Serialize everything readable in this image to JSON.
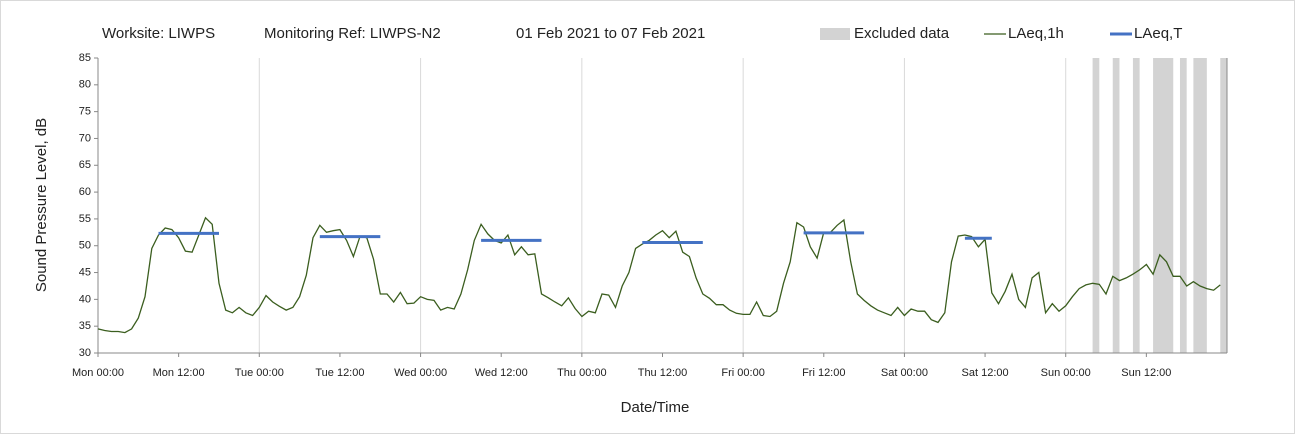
{
  "chart_data": {
    "type": "line",
    "title_parts": [
      "Worksite: LIWPS",
      "Monitoring Ref: LIWPS-N2",
      "01 Feb 2021 to 07 Feb 2021"
    ],
    "x_label": "Date/Time",
    "y_label": "Sound Pressure Level, dB",
    "xlim": [
      0,
      168
    ],
    "ylim": [
      30,
      85
    ],
    "yticks": [
      30,
      35,
      40,
      45,
      50,
      55,
      60,
      65,
      70,
      75,
      80,
      85
    ],
    "xticks": [
      {
        "value": 0,
        "label": "Mon 00:00"
      },
      {
        "value": 12,
        "label": "Mon 12:00"
      },
      {
        "value": 24,
        "label": "Tue 00:00"
      },
      {
        "value": 36,
        "label": "Tue 12:00"
      },
      {
        "value": 48,
        "label": "Wed 00:00"
      },
      {
        "value": 60,
        "label": "Wed 12:00"
      },
      {
        "value": 72,
        "label": "Thu 00:00"
      },
      {
        "value": 84,
        "label": "Thu 12:00"
      },
      {
        "value": 96,
        "label": "Fri 00:00"
      },
      {
        "value": 108,
        "label": "Fri 12:00"
      },
      {
        "value": 120,
        "label": "Sat 00:00"
      },
      {
        "value": 132,
        "label": "Sat 12:00"
      },
      {
        "value": 144,
        "label": "Sun 00:00"
      },
      {
        "value": 156,
        "label": "Sun 12:00"
      }
    ],
    "grid_every": 24,
    "excluded": {
      "name": "Excluded data",
      "color": "#d3d3d3",
      "ranges": [
        [
          148,
          149
        ],
        [
          151,
          152
        ],
        [
          154,
          155
        ],
        [
          157,
          160
        ],
        [
          161,
          162
        ],
        [
          163,
          165
        ],
        [
          167,
          168
        ]
      ]
    },
    "series": [
      {
        "name": "LAeq,1h",
        "color": "#3b5e1f",
        "width": 1.3,
        "x": [
          0,
          1,
          2,
          3,
          4,
          5,
          6,
          7,
          8,
          9,
          10,
          11,
          12,
          13,
          14,
          15,
          16,
          17,
          18,
          19,
          20,
          21,
          22,
          23,
          24,
          25,
          26,
          27,
          28,
          29,
          30,
          31,
          32,
          33,
          34,
          35,
          36,
          37,
          38,
          39,
          40,
          41,
          42,
          43,
          44,
          45,
          46,
          47,
          48,
          49,
          50,
          51,
          52,
          53,
          54,
          55,
          56,
          57,
          58,
          59,
          60,
          61,
          62,
          63,
          64,
          65,
          66,
          67,
          68,
          69,
          70,
          71,
          72,
          73,
          74,
          75,
          76,
          77,
          78,
          79,
          80,
          81,
          82,
          83,
          84,
          85,
          86,
          87,
          88,
          89,
          90,
          91,
          92,
          93,
          94,
          95,
          96,
          97,
          98,
          99,
          100,
          101,
          102,
          103,
          104,
          105,
          106,
          107,
          108,
          109,
          110,
          111,
          112,
          113,
          114,
          115,
          116,
          117,
          118,
          119,
          120,
          121,
          122,
          123,
          124,
          125,
          126,
          127,
          128,
          129,
          130,
          131,
          132,
          133,
          134,
          135,
          136,
          137,
          138,
          139,
          140,
          141,
          142,
          143,
          144,
          145,
          146,
          147,
          148,
          149,
          150,
          151,
          152,
          153,
          154,
          155,
          156,
          157,
          158,
          159,
          160,
          161,
          162,
          163,
          164,
          165,
          166,
          167
        ],
        "values": [
          34.5,
          34.2,
          34,
          34,
          33.8,
          34.5,
          36.5,
          40.5,
          49.5,
          52,
          53.3,
          53,
          51.5,
          49,
          48.8,
          52,
          55.2,
          54,
          43,
          38,
          37.5,
          38.5,
          37.5,
          37,
          38.5,
          40.7,
          39.5,
          38.7,
          38,
          38.5,
          40.5,
          44.5,
          51.5,
          53.8,
          52.5,
          52.8,
          53,
          51,
          48,
          51.8,
          51.5,
          47.5,
          41,
          41,
          39.5,
          41.3,
          39.2,
          39.3,
          40.5,
          40,
          39.8,
          38,
          38.5,
          38.2,
          41,
          45.5,
          51,
          54,
          52.2,
          51,
          50.5,
          52,
          48.3,
          49.8,
          48.3,
          48.5,
          41,
          40.3,
          39.5,
          38.8,
          40.3,
          38.3,
          36.8,
          37.8,
          37.5,
          41,
          40.8,
          38.5,
          42.5,
          45,
          49.5,
          50.3,
          51,
          52,
          52.8,
          51.5,
          52.7,
          48.8,
          48,
          44,
          41,
          40.2,
          39,
          39,
          38,
          37.4,
          37.2,
          37.2,
          39.5,
          37,
          36.8,
          37.8,
          43,
          47,
          54.3,
          53.5,
          49.8,
          47.7,
          52.5,
          52.5,
          53.8,
          54.8,
          47,
          41,
          39.8,
          38.8,
          38,
          37.5,
          37,
          38.5,
          37,
          38.2,
          37.8,
          37.8,
          36.2,
          35.7,
          37.5,
          47,
          51.8,
          52,
          51.7,
          49.8,
          51.2,
          41.2,
          39.2,
          41.5,
          44.7,
          40,
          38.5,
          44,
          45,
          37.5,
          39.2,
          37.8,
          38.8,
          40.5,
          42,
          42.7,
          43,
          42.8,
          41,
          44.3,
          43.5,
          44,
          44.7,
          45.5,
          46.5,
          44.7,
          48.3,
          47,
          44.3,
          44.3,
          42.5,
          43.3,
          42.5,
          42,
          41.7,
          42.7
        ]
      },
      {
        "name": "LAeq,T",
        "color": "#4472c4",
        "width": 3,
        "x": [
          9,
          18,
          null,
          33,
          42,
          null,
          57,
          66,
          null,
          81,
          90,
          null,
          105,
          114,
          null,
          129,
          133
        ],
        "values": [
          52.3,
          52.3,
          null,
          51.7,
          51.7,
          null,
          51,
          51,
          null,
          50.6,
          50.6,
          null,
          52.4,
          52.4,
          null,
          51.4,
          51.4
        ]
      }
    ]
  }
}
